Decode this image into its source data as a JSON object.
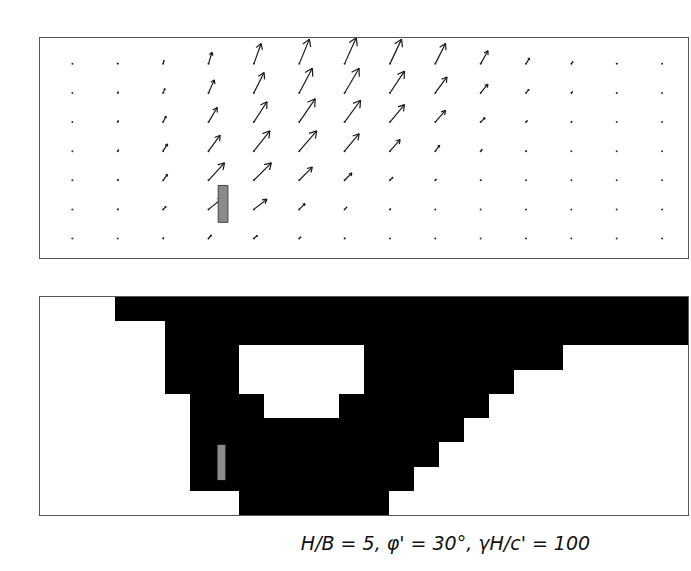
{
  "caption": "H/B = 5, φ' = 30°, γH/c' = 100",
  "chart_data": [
    {
      "type": "quiver",
      "tick_labels": false,
      "xlim": [
        0,
        10
      ],
      "ylim": [
        0,
        3.4
      ],
      "x": [
        0.5,
        1.2,
        1.9,
        2.6,
        3.3,
        4.0,
        4.7,
        5.4,
        6.1,
        6.8,
        7.5,
        8.2,
        8.9,
        9.6
      ],
      "y": [
        0.3,
        0.75,
        1.2,
        1.65,
        2.1,
        2.55,
        3.0
      ],
      "u": [
        [
          0,
          0,
          0.02,
          0.1,
          0.12,
          0.06,
          0.02,
          0,
          0,
          0,
          0,
          0,
          0,
          0
        ],
        [
          0,
          0.02,
          0.1,
          0.5,
          0.45,
          0.2,
          0.08,
          0.03,
          0,
          0,
          0,
          0,
          0,
          0
        ],
        [
          0,
          0.02,
          0.15,
          0.55,
          0.6,
          0.45,
          0.25,
          0.1,
          0.04,
          0.02,
          0,
          0,
          0,
          0
        ],
        [
          0,
          0.03,
          0.15,
          0.4,
          0.55,
          0.6,
          0.5,
          0.35,
          0.15,
          0.05,
          0.02,
          0,
          0,
          0
        ],
        [
          0,
          0.02,
          0.1,
          0.3,
          0.45,
          0.55,
          0.55,
          0.5,
          0.35,
          0.15,
          0.05,
          0.02,
          0,
          0
        ],
        [
          0,
          0.02,
          0.06,
          0.2,
          0.35,
          0.45,
          0.5,
          0.5,
          0.4,
          0.25,
          0.1,
          0.04,
          0.01,
          0
        ],
        [
          0,
          0.01,
          0.03,
          0.12,
          0.25,
          0.35,
          0.4,
          0.4,
          0.35,
          0.25,
          0.12,
          0.05,
          0.02,
          0
        ]
      ],
      "v": [
        [
          0,
          0,
          0.03,
          0.12,
          0.1,
          0.05,
          0.02,
          0,
          0,
          0,
          0,
          0,
          0,
          0
        ],
        [
          0,
          0.02,
          0.1,
          0.4,
          0.35,
          0.2,
          0.08,
          0.02,
          0,
          0,
          0,
          0,
          0,
          0
        ],
        [
          0,
          0.03,
          0.2,
          0.6,
          0.6,
          0.45,
          0.25,
          0.1,
          0.04,
          0.01,
          0,
          0,
          0,
          0
        ],
        [
          0,
          0.05,
          0.25,
          0.55,
          0.7,
          0.7,
          0.6,
          0.4,
          0.2,
          0.06,
          0.02,
          0,
          0,
          0
        ],
        [
          0.01,
          0.05,
          0.2,
          0.5,
          0.7,
          0.8,
          0.75,
          0.6,
          0.4,
          0.15,
          0.05,
          0.02,
          0,
          0
        ],
        [
          0.01,
          0.04,
          0.15,
          0.45,
          0.7,
          0.85,
          0.85,
          0.75,
          0.55,
          0.3,
          0.12,
          0.05,
          0.01,
          0
        ],
        [
          0.01,
          0.03,
          0.12,
          0.4,
          0.7,
          0.85,
          0.9,
          0.85,
          0.7,
          0.45,
          0.2,
          0.08,
          0.02,
          0
        ]
      ],
      "anchor": {
        "x0": 2.75,
        "x1": 2.9,
        "y0": 0.55,
        "y1": 1.12
      }
    },
    {
      "type": "heatmap",
      "tick_labels": false,
      "colors": [
        "#ffffff",
        "#000000"
      ],
      "cells": [
        [
          0,
          0,
          0,
          1,
          1,
          1,
          1,
          1,
          1,
          1,
          1,
          1,
          1,
          1,
          1,
          1,
          1,
          1,
          1,
          1,
          1,
          1,
          1,
          1,
          1,
          1
        ],
        [
          0,
          0,
          0,
          0,
          0,
          1,
          1,
          1,
          1,
          1,
          1,
          1,
          1,
          1,
          1,
          1,
          1,
          1,
          1,
          1,
          1,
          1,
          1,
          1,
          1,
          1
        ],
        [
          0,
          0,
          0,
          0,
          0,
          1,
          1,
          1,
          0,
          0,
          0,
          0,
          0,
          1,
          1,
          1,
          1,
          1,
          1,
          1,
          1,
          0,
          0,
          0,
          0,
          0
        ],
        [
          0,
          0,
          0,
          0,
          0,
          1,
          1,
          1,
          0,
          0,
          0,
          0,
          0,
          1,
          1,
          1,
          1,
          1,
          1,
          0,
          0,
          0,
          0,
          0,
          0,
          0
        ],
        [
          0,
          0,
          0,
          0,
          0,
          0,
          1,
          1,
          1,
          0,
          0,
          0,
          1,
          1,
          1,
          1,
          1,
          1,
          0,
          0,
          0,
          0,
          0,
          0,
          0,
          0
        ],
        [
          0,
          0,
          0,
          0,
          0,
          0,
          1,
          1,
          1,
          1,
          1,
          1,
          1,
          1,
          1,
          1,
          1,
          0,
          0,
          0,
          0,
          0,
          0,
          0,
          0,
          0
        ],
        [
          0,
          0,
          0,
          0,
          0,
          0,
          1,
          1,
          1,
          1,
          1,
          1,
          1,
          1,
          1,
          1,
          0,
          0,
          0,
          0,
          0,
          0,
          0,
          0,
          0,
          0
        ],
        [
          0,
          0,
          0,
          0,
          0,
          0,
          1,
          1,
          1,
          1,
          1,
          1,
          1,
          1,
          1,
          0,
          0,
          0,
          0,
          0,
          0,
          0,
          0,
          0,
          0,
          0
        ],
        [
          0,
          0,
          0,
          0,
          0,
          0,
          0,
          0,
          1,
          1,
          1,
          1,
          1,
          1,
          0,
          0,
          0,
          0,
          0,
          0,
          0,
          0,
          0,
          0,
          0,
          0
        ]
      ],
      "anchor": {
        "x0": 6.62,
        "x1": 6.94,
        "y0": 5.6,
        "y1": 7.06
      }
    }
  ]
}
